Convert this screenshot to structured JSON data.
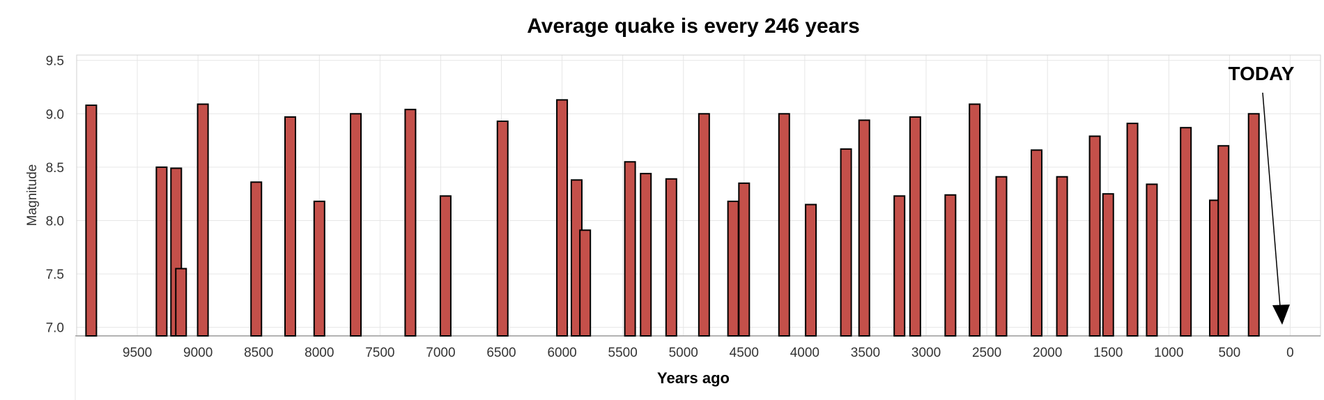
{
  "chart_data": {
    "type": "bar",
    "title": "Average quake is every 246 years",
    "xlabel": "Years ago",
    "ylabel": "Magnitude",
    "xlim": [
      10000,
      -250
    ],
    "ylim": [
      6.92,
      9.55
    ],
    "xticks": [
      9500,
      9000,
      8500,
      8000,
      7500,
      7000,
      6500,
      6000,
      5500,
      5000,
      4500,
      4000,
      3500,
      3000,
      2500,
      2000,
      1500,
      1000,
      500,
      0
    ],
    "yticks": [
      "7.0",
      "7.5",
      "8.0",
      "8.5",
      "9.0",
      "9.5"
    ],
    "grid": true,
    "bar_color": "#c4504a",
    "annotation": {
      "text": "TODAY",
      "points_to_years_ago": 0
    },
    "years_ago": [
      9880,
      9300,
      9180,
      9140,
      8960,
      8520,
      8240,
      8000,
      7700,
      7250,
      6960,
      6490,
      6000,
      5880,
      5810,
      5440,
      5310,
      5100,
      4830,
      4590,
      4500,
      4170,
      3950,
      3660,
      3510,
      3220,
      3090,
      2800,
      2600,
      2380,
      2090,
      1880,
      1610,
      1500,
      1300,
      1140,
      860,
      620,
      550,
      300
    ],
    "magnitude": [
      9.08,
      8.5,
      8.49,
      7.55,
      9.09,
      8.36,
      8.97,
      8.18,
      9.0,
      9.04,
      8.23,
      8.93,
      9.13,
      8.38,
      7.91,
      8.55,
      8.44,
      8.39,
      9.0,
      8.18,
      8.35,
      9.0,
      8.15,
      8.67,
      8.94,
      8.23,
      8.97,
      8.24,
      9.09,
      8.41,
      8.66,
      8.41,
      8.79,
      8.25,
      8.91,
      8.34,
      8.87,
      8.19,
      8.7,
      9.0
    ]
  }
}
